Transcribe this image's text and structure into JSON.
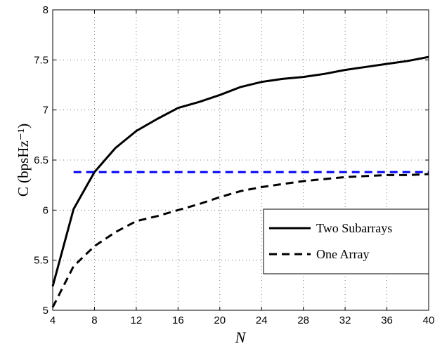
{
  "chart_data": {
    "type": "line",
    "xlabel": "N",
    "ylabel": "C (bpsHz⁻¹)",
    "xlim": [
      4,
      40
    ],
    "ylim": [
      5,
      8
    ],
    "xticks": [
      4,
      8,
      12,
      16,
      20,
      24,
      28,
      32,
      36,
      40
    ],
    "yticks": [
      5,
      5.5,
      6,
      6.5,
      7,
      7.5,
      8
    ],
    "xtick_labels": [
      "4",
      "8",
      "12",
      "16",
      "20",
      "24",
      "28",
      "32",
      "36",
      "40"
    ],
    "ytick_labels": [
      "5",
      "5.5",
      "6",
      "6.5",
      "7",
      "7.5",
      "8"
    ],
    "grid": true,
    "legend_position": "lower-right",
    "series": [
      {
        "name": "Two Subarrays",
        "style": "solid",
        "color": "#000000",
        "x": [
          4,
          6,
          8,
          10,
          12,
          14,
          16,
          18,
          20,
          22,
          24,
          26,
          28,
          30,
          32,
          34,
          36,
          38,
          40
        ],
        "y": [
          5.24,
          6.01,
          6.38,
          6.62,
          6.79,
          6.91,
          7.02,
          7.08,
          7.15,
          7.23,
          7.28,
          7.31,
          7.33,
          7.36,
          7.4,
          7.43,
          7.46,
          7.49,
          7.53
        ]
      },
      {
        "name": "One Array",
        "style": "dashed",
        "color": "#000000",
        "x": [
          4,
          6,
          8,
          10,
          12,
          14,
          16,
          18,
          20,
          22,
          24,
          26,
          28,
          30,
          32,
          34,
          36,
          38,
          40
        ],
        "y": [
          5.03,
          5.44,
          5.64,
          5.78,
          5.89,
          5.94,
          6.0,
          6.06,
          6.13,
          6.19,
          6.23,
          6.26,
          6.29,
          6.31,
          6.33,
          6.34,
          6.35,
          6.35,
          6.36
        ]
      },
      {
        "style": "dashed",
        "color": "#0000ff",
        "x": [
          6,
          40
        ],
        "y": [
          6.38,
          6.38
        ]
      }
    ]
  }
}
